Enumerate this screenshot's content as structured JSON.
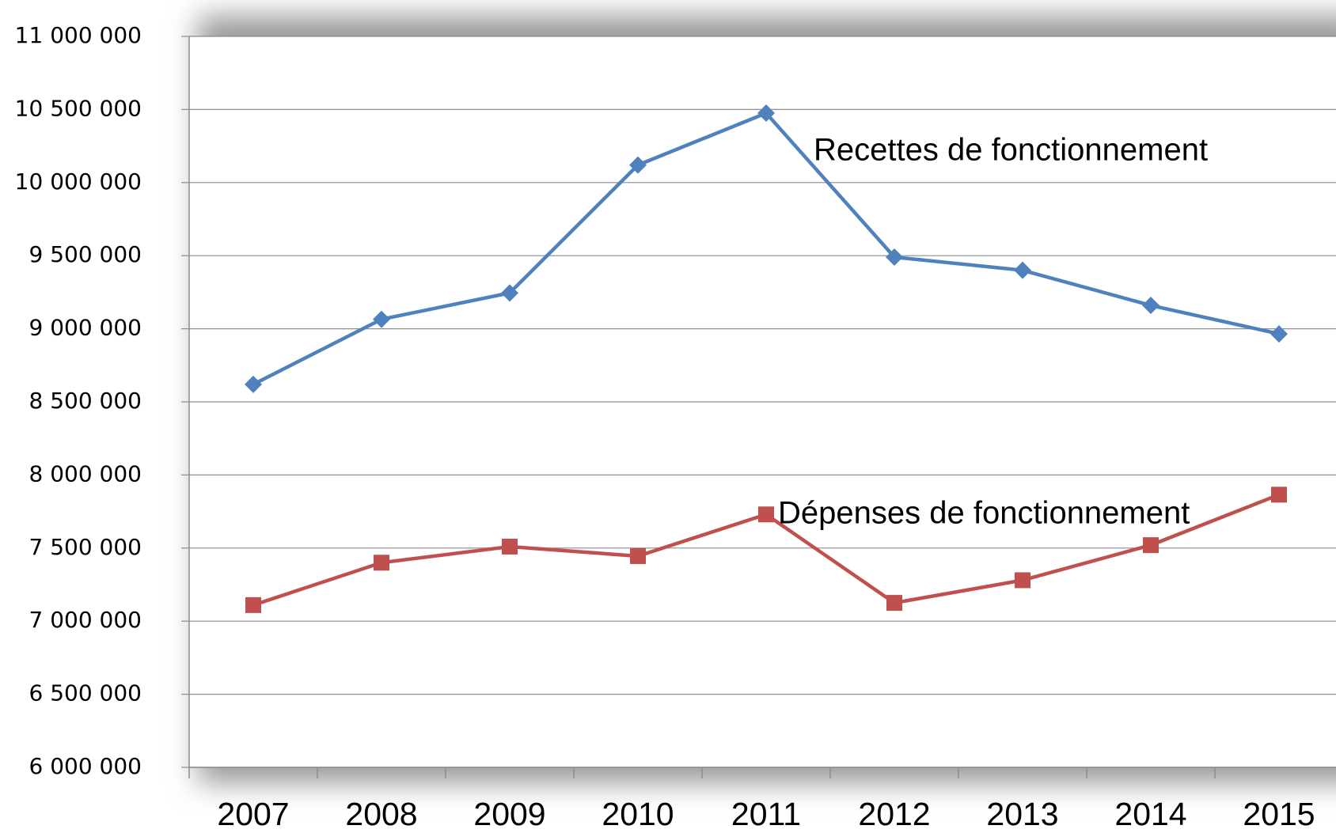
{
  "chart_data": {
    "type": "line",
    "categories": [
      "2007",
      "2008",
      "2009",
      "2010",
      "2011",
      "2012",
      "2013",
      "2014",
      "2015"
    ],
    "series": [
      {
        "name": "Recettes de fonctionnement",
        "color": "#4f81bd",
        "marker": "diamond",
        "values": [
          8620000,
          9065000,
          9245000,
          10120000,
          10475000,
          9490000,
          9400000,
          9160000,
          8965000
        ]
      },
      {
        "name": "Dépenses de fonctionnement",
        "color": "#c0504d",
        "marker": "square",
        "values": [
          7110000,
          7400000,
          7510000,
          7445000,
          7730000,
          7125000,
          7280000,
          7520000,
          7865000
        ]
      }
    ],
    "ylim": [
      6000000,
      11000000
    ],
    "yticks": [
      {
        "value": 6000000,
        "label": "6 000 000"
      },
      {
        "value": 6500000,
        "label": "6 500 000"
      },
      {
        "value": 7000000,
        "label": "7 000 000"
      },
      {
        "value": 7500000,
        "label": "7 500 000"
      },
      {
        "value": 8000000,
        "label": "8 000 000"
      },
      {
        "value": 8500000,
        "label": "8 500 000"
      },
      {
        "value": 9000000,
        "label": "9 000 000"
      },
      {
        "value": 9500000,
        "label": "9 500 000"
      },
      {
        "value": 10000000,
        "label": "10 000 000"
      },
      {
        "value": 10500000,
        "label": "10 500 000"
      },
      {
        "value": 11000000,
        "label": "11 000 000"
      }
    ],
    "grid": true
  }
}
